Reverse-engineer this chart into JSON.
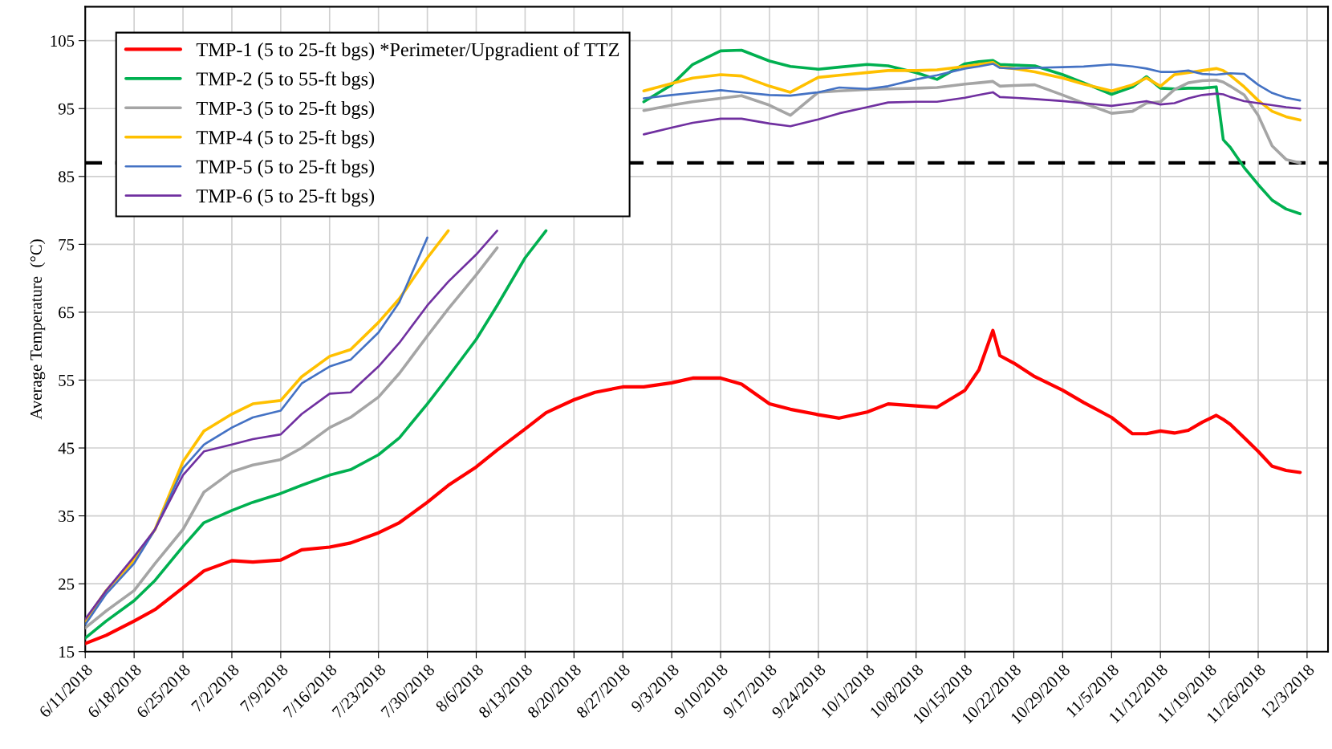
{
  "chart_data": {
    "type": "line",
    "ylabel": "Average Temperature  (°C)",
    "x": [
      "2018-06-11",
      "2018-06-14",
      "2018-06-18",
      "2018-06-21",
      "2018-06-25",
      "2018-06-28",
      "2018-07-02",
      "2018-07-05",
      "2018-07-09",
      "2018-07-12",
      "2018-07-16",
      "2018-07-19",
      "2018-07-23",
      "2018-07-26",
      "2018-07-30",
      "2018-08-02",
      "2018-08-06",
      "2018-08-09",
      "2018-08-13",
      "2018-08-16",
      "2018-08-20",
      "2018-08-23",
      "2018-08-27",
      "2018-08-30",
      "2018-09-03",
      "2018-09-06",
      "2018-09-10",
      "2018-09-13",
      "2018-09-17",
      "2018-09-20",
      "2018-09-24",
      "2018-09-27",
      "2018-10-01",
      "2018-10-04",
      "2018-10-08",
      "2018-10-11",
      "2018-10-15",
      "2018-10-17",
      "2018-10-19",
      "2018-10-20",
      "2018-10-22",
      "2018-10-25",
      "2018-10-29",
      "2018-11-01",
      "2018-11-05",
      "2018-11-08",
      "2018-11-10",
      "2018-11-12",
      "2018-11-14",
      "2018-11-16",
      "2018-11-18",
      "2018-11-20",
      "2018-11-21",
      "2018-11-22",
      "2018-11-24",
      "2018-11-26",
      "2018-11-28",
      "2018-11-30",
      "2018-12-02"
    ],
    "series": [
      {
        "name": "TMP-1 (5 to 25-ft bgs) *Perimeter/Upgradient of TTZ",
        "color": "#ff0000",
        "values": [
          16.2,
          17.4,
          19.5,
          21.2,
          24.4,
          26.9,
          28.4,
          28.2,
          28.5,
          30.0,
          30.4,
          31.0,
          32.5,
          34.0,
          37.0,
          39.5,
          42.2,
          44.7,
          47.8,
          50.2,
          52.1,
          53.2,
          54.0,
          54.0,
          54.6,
          55.3,
          55.3,
          54.4,
          51.5,
          50.7,
          49.9,
          49.4,
          50.3,
          51.5,
          51.2,
          51.0,
          53.5,
          56.5,
          62.3,
          58.6,
          57.5,
          55.5,
          53.5,
          51.7,
          49.5,
          47.1,
          47.1,
          47.5,
          47.2,
          47.6,
          48.8,
          49.8,
          49.2,
          48.5,
          46.5,
          44.5,
          42.3,
          41.7,
          41.4
        ]
      },
      {
        "name": "TMP-2 (5 to 55-ft bgs)",
        "color": "#00b050",
        "values": [
          17.0,
          19.5,
          22.5,
          25.5,
          30.5,
          34.0,
          35.8,
          37.0,
          38.3,
          39.5,
          41.0,
          41.8,
          44.0,
          46.5,
          51.5,
          55.5,
          61.0,
          66.0,
          73.0,
          77.0,
          null,
          null,
          null,
          96.0,
          98.5,
          101.5,
          103.5,
          103.6,
          102.0,
          101.2,
          100.8,
          101.1,
          101.5,
          101.3,
          100.3,
          99.3,
          101.6,
          101.9,
          102.1,
          101.5,
          101.4,
          101.3,
          100.0,
          98.8,
          97.1,
          98.2,
          99.7,
          98.0,
          97.9,
          98.0,
          98.0,
          98.2,
          90.4,
          89.3,
          86.3,
          83.8,
          81.5,
          80.2,
          79.5
        ]
      },
      {
        "name": "TMP-3 (5 to 25-ft bgs)",
        "color": "#a5a5a5",
        "values": [
          18.5,
          21.0,
          24.0,
          28.0,
          33.0,
          38.5,
          41.5,
          42.5,
          43.3,
          45.0,
          48.0,
          49.5,
          52.5,
          56.0,
          61.5,
          65.5,
          70.5,
          74.5,
          null,
          null,
          null,
          null,
          null,
          94.7,
          95.5,
          96.0,
          96.5,
          96.9,
          95.5,
          94.0,
          97.4,
          97.6,
          97.8,
          97.9,
          98.0,
          98.1,
          98.6,
          98.8,
          99.0,
          98.3,
          98.4,
          98.5,
          97.0,
          95.8,
          94.3,
          94.6,
          95.8,
          96.0,
          97.8,
          98.8,
          99.1,
          99.2,
          98.9,
          98.3,
          97.0,
          94.0,
          89.5,
          87.5,
          87.0
        ]
      },
      {
        "name": "TMP-4 (5 to 25-ft bgs)",
        "color": "#ffc000",
        "values": [
          19.5,
          24.0,
          28.5,
          33.0,
          43.0,
          47.5,
          50.0,
          51.5,
          52.0,
          55.5,
          58.5,
          59.5,
          63.5,
          67.0,
          73.0,
          77.0,
          null,
          null,
          null,
          null,
          null,
          null,
          null,
          97.6,
          98.7,
          99.5,
          100.0,
          99.8,
          98.3,
          97.4,
          99.6,
          99.9,
          100.3,
          100.6,
          100.6,
          100.7,
          101.2,
          101.5,
          101.8,
          101.1,
          100.9,
          100.4,
          99.5,
          98.6,
          97.6,
          98.5,
          99.5,
          98.3,
          100.0,
          100.3,
          100.6,
          100.9,
          100.6,
          99.9,
          98.2,
          96.2,
          94.6,
          93.8,
          93.3
        ]
      },
      {
        "name": "TMP-5 (5 to 25-ft bgs)",
        "color": "#4472c4",
        "values": [
          19.0,
          23.5,
          28.0,
          33.0,
          42.0,
          45.5,
          48.0,
          49.5,
          50.5,
          54.5,
          57.0,
          58.0,
          62.0,
          66.5,
          76.0,
          null,
          null,
          null,
          null,
          null,
          null,
          null,
          null,
          96.5,
          97.0,
          97.3,
          97.7,
          97.4,
          97.0,
          96.9,
          97.4,
          98.1,
          97.9,
          98.3,
          99.3,
          99.9,
          100.9,
          101.2,
          101.6,
          101.0,
          100.9,
          101.0,
          101.1,
          101.2,
          101.5,
          101.2,
          100.9,
          100.4,
          100.4,
          100.6,
          100.1,
          100.0,
          100.1,
          100.2,
          100.1,
          98.5,
          97.3,
          96.6,
          96.2
        ]
      },
      {
        "name": "TMP-6 (5 to 25-ft bgs)",
        "color": "#7030a0",
        "values": [
          19.8,
          24.0,
          29.0,
          33.0,
          41.0,
          44.5,
          45.5,
          46.3,
          47.0,
          50.0,
          53.0,
          53.2,
          57.0,
          60.5,
          66.0,
          69.5,
          73.5,
          77.0,
          null,
          null,
          null,
          null,
          null,
          91.2,
          92.2,
          92.9,
          93.5,
          93.5,
          92.8,
          92.4,
          93.4,
          94.3,
          95.2,
          95.9,
          96.0,
          96.0,
          96.6,
          97.0,
          97.4,
          96.7,
          96.6,
          96.4,
          96.1,
          95.8,
          95.4,
          95.8,
          96.1,
          95.6,
          95.8,
          96.5,
          97.0,
          97.2,
          97.1,
          96.7,
          96.1,
          95.8,
          95.5,
          95.2,
          95.0
        ]
      }
    ],
    "ylim": [
      15,
      110
    ],
    "yticks": [
      15,
      25,
      35,
      45,
      55,
      65,
      75,
      85,
      95,
      105
    ],
    "xlim": [
      "2018-06-11",
      "2018-12-06"
    ],
    "xticks": [
      {
        "value": "2018-06-11",
        "label": "6/11/2018"
      },
      {
        "value": "2018-06-18",
        "label": "6/18/2018"
      },
      {
        "value": "2018-06-25",
        "label": "6/25/2018"
      },
      {
        "value": "2018-07-02",
        "label": "7/2/2018"
      },
      {
        "value": "2018-07-09",
        "label": "7/9/2018"
      },
      {
        "value": "2018-07-16",
        "label": "7/16/2018"
      },
      {
        "value": "2018-07-23",
        "label": "7/23/2018"
      },
      {
        "value": "2018-07-30",
        "label": "7/30/2018"
      },
      {
        "value": "2018-08-06",
        "label": "8/6/2018"
      },
      {
        "value": "2018-08-13",
        "label": "8/13/2018"
      },
      {
        "value": "2018-08-20",
        "label": "8/20/2018"
      },
      {
        "value": "2018-08-27",
        "label": "8/27/2018"
      },
      {
        "value": "2018-09-03",
        "label": "9/3/2018"
      },
      {
        "value": "2018-09-10",
        "label": "9/10/2018"
      },
      {
        "value": "2018-09-17",
        "label": "9/17/2018"
      },
      {
        "value": "2018-09-24",
        "label": "9/24/2018"
      },
      {
        "value": "2018-10-01",
        "label": "10/1/2018"
      },
      {
        "value": "2018-10-08",
        "label": "10/8/2018"
      },
      {
        "value": "2018-10-15",
        "label": "10/15/2018"
      },
      {
        "value": "2018-10-22",
        "label": "10/22/2018"
      },
      {
        "value": "2018-10-29",
        "label": "10/29/2018"
      },
      {
        "value": "2018-11-05",
        "label": "11/5/2018"
      },
      {
        "value": "2018-11-12",
        "label": "11/12/2018"
      },
      {
        "value": "2018-11-19",
        "label": "11/19/2018"
      },
      {
        "value": "2018-11-26",
        "label": "11/26/2018"
      },
      {
        "value": "2018-12-03",
        "label": "12/3/2018"
      }
    ],
    "ref_lines": [
      {
        "axis": "y",
        "value": 87,
        "color": "#000000",
        "line_style": "dashed"
      }
    ],
    "grid": true,
    "legend": "top left",
    "marker": "none",
    "line_style": "solid"
  }
}
